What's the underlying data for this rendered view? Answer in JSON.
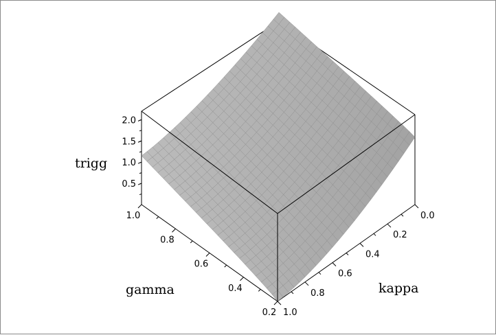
{
  "chart_data": {
    "type": "surface3d",
    "title": "",
    "zlabel": "trigg",
    "xlabel": "kappa",
    "ylabel": "gamma",
    "kappa_range": [
      0.0,
      1.0
    ],
    "gamma_range": [
      0.2,
      1.0
    ],
    "z_range": [
      0.0,
      2.2
    ],
    "kappa_ticks": [
      "0.0",
      "0.2",
      "0.4",
      "0.6",
      "0.8",
      "1.0"
    ],
    "gamma_ticks": [
      "0.2",
      "0.4",
      "0.6",
      "0.8",
      "1.0"
    ],
    "z_ticks": [
      "0.5",
      "1.0",
      "1.5",
      "2.0"
    ],
    "corner_values": [
      {
        "kappa": 1.0,
        "gamma": 0.2,
        "trigg": 0.0
      },
      {
        "kappa": 0.0,
        "gamma": 0.2,
        "trigg": 1.65
      },
      {
        "kappa": 1.0,
        "gamma": 1.0,
        "trigg": 1.15
      },
      {
        "kappa": 0.0,
        "gamma": 1.0,
        "trigg": 2.2
      }
    ],
    "surface_color": "#b4b4b4",
    "mesh_color": "#8c8c8c",
    "box": true,
    "grid": true
  }
}
